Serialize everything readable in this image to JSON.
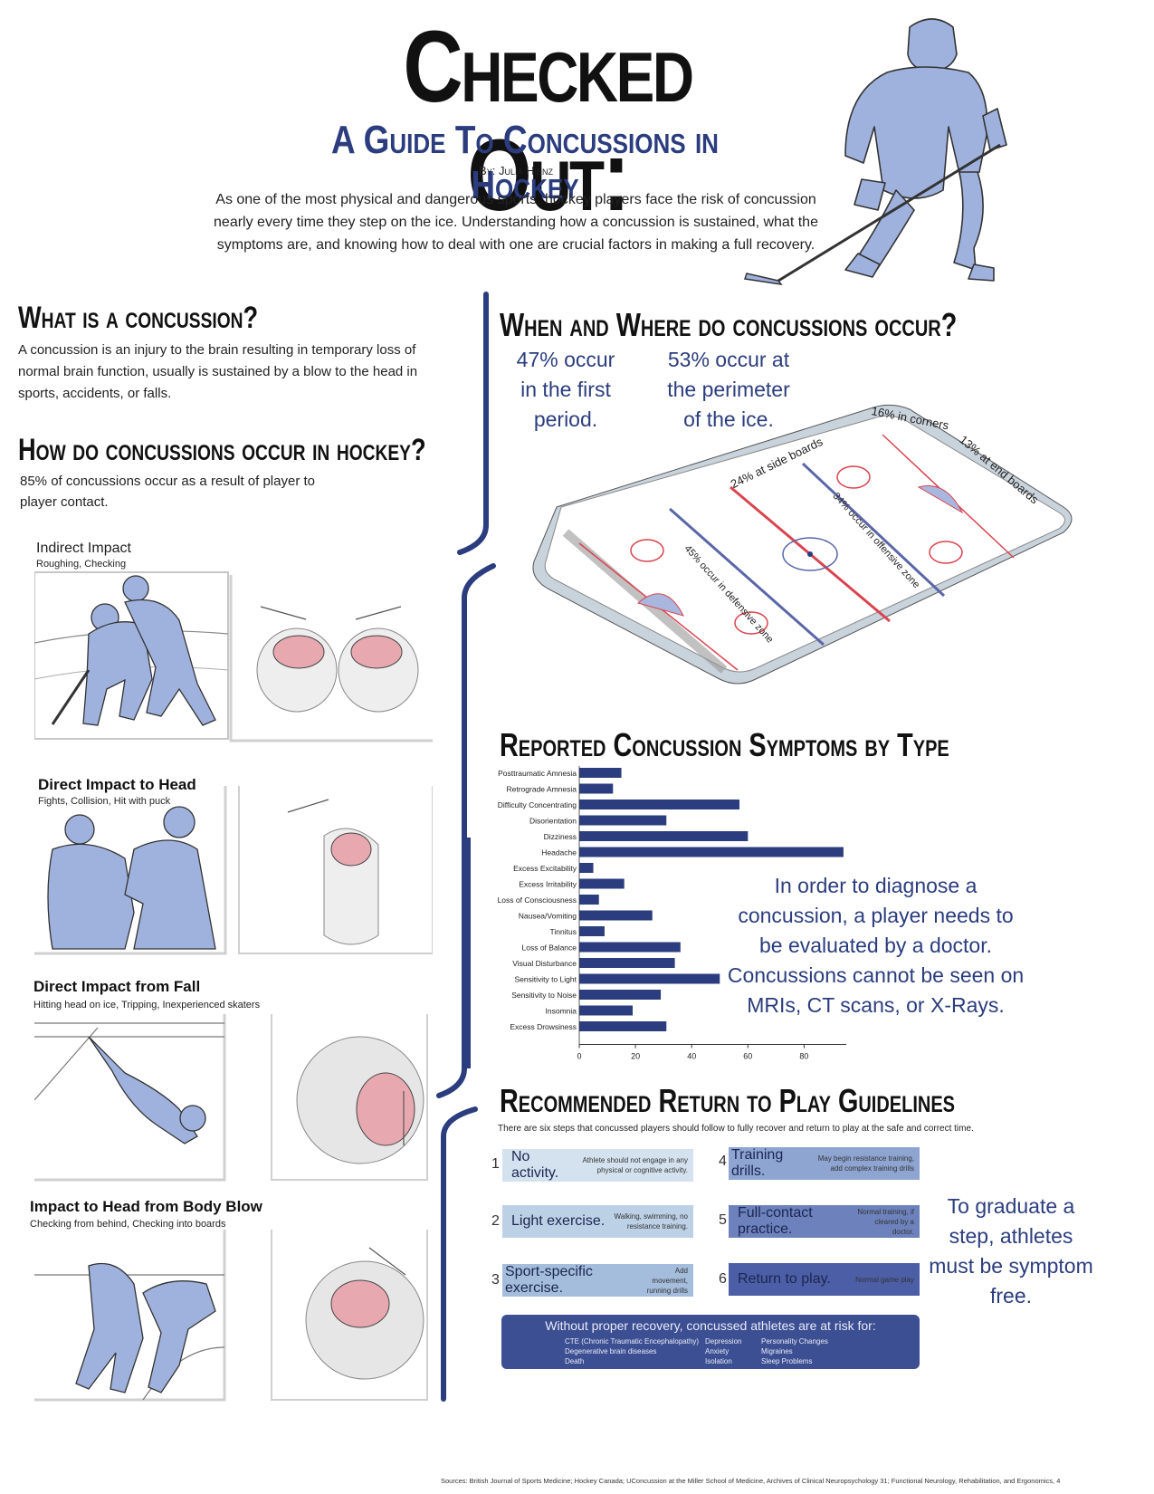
{
  "header": {
    "title": "Checked Out:",
    "subtitle": "A Guide To Concussions in Hockey",
    "byline": "By: Julia Hienz",
    "intro": "As one of the most physical and dangerous sports, hockey players face the risk of concussion nearly every time they step on the ice. Understanding how a concussion is sustained, what the symptoms are, and knowing how to deal with one are crucial factors in making a full recovery."
  },
  "what": {
    "heading": "What is a concussion?",
    "body": "A concussion is an injury to the brain resulting in temporary loss of normal brain function, usually is sustained by a blow to the head in sports, accidents, or falls."
  },
  "how": {
    "heading": "How do concussions occur in hockey?",
    "body": "85% of concussions occur as a result of player to player contact.",
    "impacts": [
      {
        "title": "Indirect Impact",
        "sub": "Roughing, Checking"
      },
      {
        "title": "Direct Impact to Head",
        "sub": "Fights, Collision, Hit with puck"
      },
      {
        "title": "Direct Impact from Fall",
        "sub": "Hitting head on ice, Tripping, Inexperienced skaters"
      },
      {
        "title": "Impact to Head from Body Blow",
        "sub": "Checking from behind, Checking into boards"
      }
    ]
  },
  "when": {
    "heading": "When and Where do concussions occur?",
    "stat1": "47% occur in the first period.",
    "stat2": "53% occur at the perimeter of the ice.",
    "rink": {
      "corners": "16% in corners",
      "end_boards": "13% at end boards",
      "side_boards": "24% at side boards",
      "offensive": "34% occur in offensive zone",
      "defensive": "45% occur in defensive zone"
    }
  },
  "chart_data": {
    "type": "bar",
    "title": "Reported Concussion Symptoms by Type",
    "orientation": "horizontal",
    "categories": [
      "Posttraumatic Amnesia",
      "Retrograde Amnesia",
      "Difficulty Concentrating",
      "Disorientation",
      "Dizziness",
      "Headache",
      "Excess Excitability",
      "Excess Irritability",
      "Loss of Consciousness",
      "Nausea/Vomiting",
      "Tinnitus",
      "Loss of Balance",
      "Visual Disturbance",
      "Sensitivity to Light",
      "Sensitivity to Noise",
      "Insomnia",
      "Excess Drowsiness"
    ],
    "values": [
      15,
      12,
      57,
      31,
      60,
      94,
      5,
      16,
      7,
      26,
      9,
      36,
      34,
      50,
      29,
      19,
      31
    ],
    "xlim": [
      0,
      95
    ],
    "xticks": [
      0,
      20,
      40,
      60,
      80
    ],
    "bar_color": "#2b3d7e",
    "grid": false
  },
  "diagnose_note": "In order to diagnose a concussion, a player needs to be evaluated by a doctor. Concussions cannot be seen on MRIs, CT scans, or X-Rays.",
  "guidelines": {
    "heading": "Recommended Return to Play Guidelines",
    "intro": "There are six steps that concussed players should follow to fully recover and return to play at the safe and correct time.",
    "steps": [
      {
        "num": "1",
        "label": "No activity.",
        "note": "Athlete should not engage in any physical or cognitive activity.",
        "color": "#d4e2ef"
      },
      {
        "num": "2",
        "label": "Light exercise.",
        "note": "Walking, swimming, no resistance training.",
        "color": "#bcd0e6"
      },
      {
        "num": "3",
        "label": "Sport-specific exercise.",
        "note": "Add movement, running drills",
        "color": "#a4bddc"
      },
      {
        "num": "4",
        "label": "Training drills.",
        "note": "May begin resistance training, add complex training drills",
        "color": "#8ea5d2"
      },
      {
        "num": "5",
        "label": "Full-contact practice.",
        "note": "Normal training, if cleared by a doctor.",
        "color": "#6d82bd"
      },
      {
        "num": "6",
        "label": "Return to play.",
        "note": "Normal game play",
        "color": "#4b5ea6"
      }
    ],
    "graduate": "To graduate a step, athletes must be symptom free."
  },
  "risk": {
    "title": "Without proper recovery, concussed athletes are at risk for:",
    "col1": [
      "CTE (Chronic Traumatic Encephalopathy)",
      "Degenerative brain diseases",
      "Death"
    ],
    "col2": [
      "Depression",
      "Anxiety",
      "Isolation"
    ],
    "col3": [
      "Personality Changes",
      "Migraines",
      "Sleep Problems"
    ]
  },
  "sources": "Sources: British Journal of Sports Medicine; Hockey Canada; UConcussion at the Miller School of Medicine, Archives of Clinical Neuropsychology 31; Functional Neurology, Rehabilitation, and Ergonomics, 4",
  "colors": {
    "navy": "#2b3d7e",
    "player_fill": "#9fb2de",
    "rink_red": "#d9444f",
    "rink_blue": "#5a66a8"
  }
}
